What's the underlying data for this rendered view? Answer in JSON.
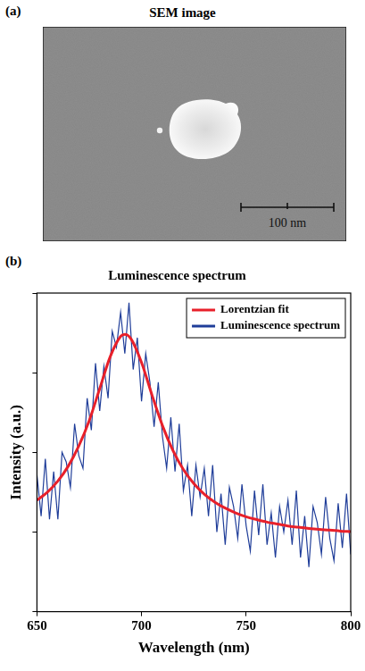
{
  "sem_panel": {
    "label": "(a)",
    "title": "SEM image",
    "scale_bar": "100 nm"
  },
  "chart_data": {
    "type": "line",
    "label": "(b)",
    "title": "Luminescence spectrum",
    "x_label": "Wavelength (nm)",
    "y_label": "Intensity (a.u.)",
    "xlim": [
      650,
      800
    ],
    "xticks": [
      650,
      700,
      750,
      800
    ],
    "ylim": [
      0,
      1
    ],
    "yticks": [
      0,
      0.25,
      0.5,
      0.75,
      1
    ],
    "tick_labels": "x",
    "grid": false,
    "legend": "top-right",
    "series": [
      {
        "name": "Lorentzian fit",
        "color": "#e8202a",
        "line_style": "solid",
        "x": [
          650,
          655,
          660,
          665,
          670,
          675,
          680,
          685,
          690,
          692,
          695,
          700,
          705,
          710,
          715,
          720,
          725,
          730,
          735,
          740,
          745,
          750,
          755,
          760,
          765,
          770,
          775,
          780,
          785,
          790,
          795,
          800
        ],
        "values": [
          0.35,
          0.375,
          0.41,
          0.457,
          0.52,
          0.6,
          0.7,
          0.8,
          0.864,
          0.87,
          0.856,
          0.782,
          0.68,
          0.584,
          0.506,
          0.446,
          0.402,
          0.369,
          0.344,
          0.325,
          0.31,
          0.298,
          0.289,
          0.281,
          0.275,
          0.269,
          0.265,
          0.261,
          0.258,
          0.256,
          0.253,
          0.251
        ]
      },
      {
        "name": "Luminescence spectrum",
        "color": "#1f3d99",
        "line_style": "solid",
        "x": [
          650,
          652,
          654,
          656,
          658,
          660,
          662,
          664,
          666,
          668,
          670,
          672,
          674,
          676,
          678,
          680,
          682,
          684,
          686,
          688,
          690,
          692,
          694,
          696,
          698,
          700,
          702,
          704,
          706,
          708,
          710,
          712,
          714,
          716,
          718,
          720,
          722,
          724,
          726,
          728,
          730,
          732,
          734,
          736,
          738,
          740,
          742,
          744,
          746,
          748,
          750,
          752,
          754,
          756,
          758,
          760,
          762,
          764,
          766,
          768,
          770,
          772,
          774,
          776,
          778,
          780,
          782,
          784,
          786,
          788,
          790,
          792,
          794,
          796,
          798,
          800
        ],
        "values": [
          0.43,
          0.3,
          0.48,
          0.29,
          0.44,
          0.29,
          0.5,
          0.47,
          0.39,
          0.59,
          0.49,
          0.45,
          0.67,
          0.57,
          0.78,
          0.63,
          0.77,
          0.67,
          0.88,
          0.83,
          0.94,
          0.81,
          0.97,
          0.76,
          0.86,
          0.66,
          0.81,
          0.72,
          0.58,
          0.72,
          0.55,
          0.45,
          0.61,
          0.44,
          0.59,
          0.38,
          0.46,
          0.3,
          0.46,
          0.36,
          0.45,
          0.3,
          0.46,
          0.25,
          0.37,
          0.21,
          0.39,
          0.33,
          0.23,
          0.4,
          0.27,
          0.19,
          0.38,
          0.24,
          0.4,
          0.21,
          0.31,
          0.17,
          0.33,
          0.25,
          0.35,
          0.21,
          0.38,
          0.17,
          0.3,
          0.14,
          0.33,
          0.28,
          0.18,
          0.36,
          0.23,
          0.16,
          0.34,
          0.2,
          0.37,
          0.18
        ]
      }
    ]
  }
}
